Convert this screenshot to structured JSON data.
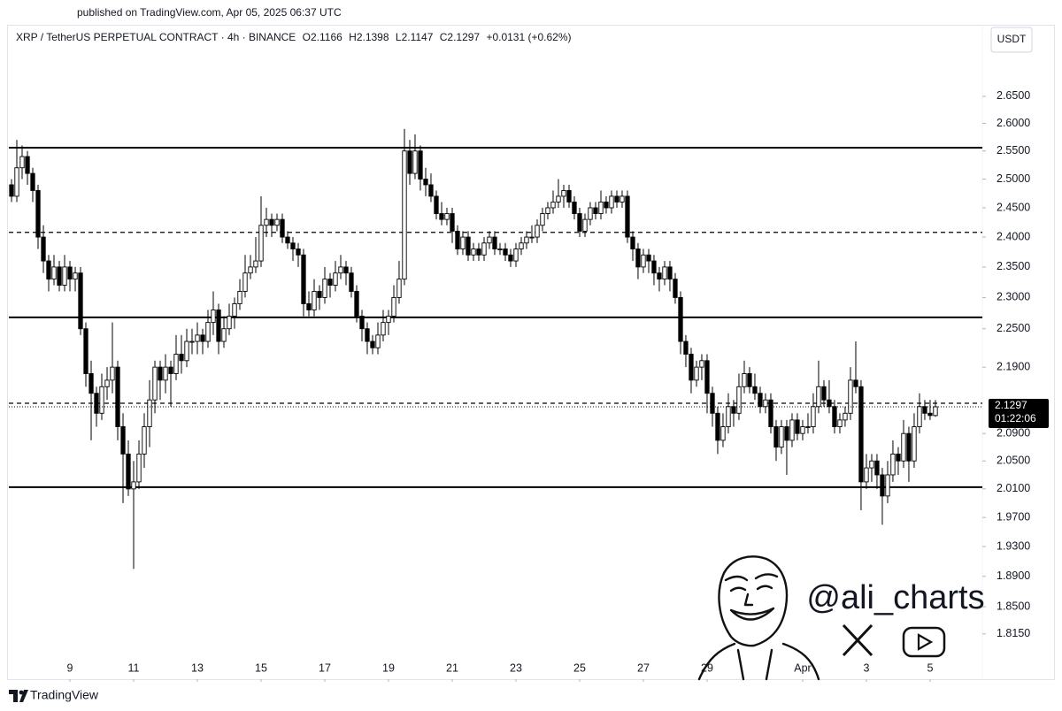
{
  "header": {
    "published": "published on TradingView.com, Apr 05, 2025 06:37 UTC",
    "symbol": "XRP / TetherUS PERPETUAL CONTRACT · 4h · BINANCE",
    "ohlc_labels": [
      "O",
      "H",
      "L",
      "C"
    ],
    "change": "+0.0131 (+0.62%)",
    "currency": "USDT",
    "countdown": "01:22:06"
  },
  "watermark": {
    "handle": "@ali_charts"
  },
  "footer": {
    "brand": "TradingView"
  },
  "chart_data": {
    "type": "candlestick",
    "log_scale": true,
    "up_color": "#ffffff",
    "down_color": "#000000",
    "outline_color": "#000000",
    "xlim": [
      7.083,
      37.64
    ],
    "ylim": [
      1.758,
      2.787
    ],
    "xticks": [
      9,
      11,
      13,
      15,
      17,
      19,
      21,
      23,
      25,
      27,
      29,
      {
        "value": 32,
        "label": "Apr"
      },
      {
        "value": 34,
        "label": "3"
      },
      {
        "value": 36,
        "label": "5"
      }
    ],
    "yticks": [
      {
        "value": 2.65,
        "label": "2.6500"
      },
      {
        "value": 2.6,
        "label": "2.6000"
      },
      {
        "value": 2.55,
        "label": "2.5500"
      },
      {
        "value": 2.5,
        "label": "2.5000"
      },
      {
        "value": 2.45,
        "label": "2.4500"
      },
      {
        "value": 2.4,
        "label": "2.4000"
      },
      {
        "value": 2.35,
        "label": "2.3500"
      },
      {
        "value": 2.3,
        "label": "2.3000"
      },
      {
        "value": 2.25,
        "label": "2.2500"
      },
      {
        "value": 2.19,
        "label": "2.1900"
      },
      {
        "value": 2.09,
        "label": "2.0900"
      },
      {
        "value": 2.05,
        "label": "2.0500"
      },
      {
        "value": 2.01,
        "label": "2.0100"
      },
      {
        "value": 1.97,
        "label": "1.9700"
      },
      {
        "value": 1.93,
        "label": "1.9300"
      },
      {
        "value": 1.89,
        "label": "1.8900"
      },
      {
        "value": 1.85,
        "label": "1.8500"
      },
      {
        "value": 1.815,
        "label": "1.8150"
      }
    ],
    "levels": [
      {
        "value": 2.556,
        "style": "solid"
      },
      {
        "value": 2.408,
        "style": "dashed"
      },
      {
        "value": 2.268,
        "style": "solid"
      },
      {
        "value": 2.135,
        "style": "dashed"
      },
      {
        "value": 2.0125,
        "style": "solid"
      }
    ],
    "x": [
      7.167,
      7.333,
      7.5,
      7.667,
      7.833,
      8,
      8.167,
      8.333,
      8.5,
      8.667,
      8.833,
      9,
      9.167,
      9.333,
      9.5,
      9.667,
      9.833,
      10,
      10.167,
      10.333,
      10.5,
      10.667,
      10.833,
      11,
      11.167,
      11.333,
      11.5,
      11.667,
      11.833,
      12,
      12.167,
      12.333,
      12.5,
      12.667,
      12.833,
      13,
      13.167,
      13.333,
      13.5,
      13.667,
      13.833,
      14,
      14.167,
      14.333,
      14.5,
      14.667,
      14.833,
      15,
      15.167,
      15.333,
      15.5,
      15.667,
      15.833,
      16,
      16.167,
      16.333,
      16.5,
      16.667,
      16.833,
      17,
      17.167,
      17.333,
      17.5,
      17.667,
      17.833,
      18,
      18.167,
      18.333,
      18.5,
      18.667,
      18.833,
      19,
      19.167,
      19.333,
      19.5,
      19.667,
      19.833,
      20,
      20.167,
      20.333,
      20.5,
      20.667,
      20.833,
      21,
      21.167,
      21.333,
      21.5,
      21.667,
      21.833,
      22,
      22.167,
      22.333,
      22.5,
      22.667,
      22.833,
      23,
      23.167,
      23.333,
      23.5,
      23.667,
      23.833,
      24,
      24.167,
      24.333,
      24.5,
      24.667,
      24.833,
      25,
      25.167,
      25.333,
      25.5,
      25.667,
      25.833,
      26,
      26.167,
      26.333,
      26.5,
      26.667,
      26.833,
      27,
      27.167,
      27.333,
      27.5,
      27.667,
      27.833,
      28,
      28.167,
      28.333,
      28.5,
      28.667,
      28.833,
      29,
      29.167,
      29.333,
      29.5,
      29.667,
      29.833,
      30,
      30.167,
      30.333,
      30.5,
      30.667,
      30.833,
      31,
      31.167,
      31.333,
      31.5,
      31.667,
      31.833,
      32,
      32.167,
      32.333,
      32.5,
      32.667,
      32.833,
      33,
      33.167,
      33.333,
      33.5,
      33.667,
      33.833,
      34,
      34.167,
      34.333,
      34.5,
      34.667,
      34.833,
      35,
      35.167,
      35.333,
      35.5,
      35.667,
      35.833,
      36,
      36.167
    ],
    "ohlc": [
      [
        2.49,
        2.5,
        2.46,
        2.47
      ],
      [
        2.47,
        2.57,
        2.46,
        2.52
      ],
      [
        2.52,
        2.56,
        2.5,
        2.54
      ],
      [
        2.54,
        2.55,
        2.49,
        2.51
      ],
      [
        2.51,
        2.52,
        2.46,
        2.48
      ],
      [
        2.48,
        2.49,
        2.38,
        2.4
      ],
      [
        2.4,
        2.42,
        2.34,
        2.36
      ],
      [
        2.36,
        2.37,
        2.31,
        2.33
      ],
      [
        2.33,
        2.37,
        2.32,
        2.35
      ],
      [
        2.35,
        2.36,
        2.31,
        2.32
      ],
      [
        2.32,
        2.37,
        2.31,
        2.35
      ],
      [
        2.35,
        2.36,
        2.31,
        2.33
      ],
      [
        2.33,
        2.35,
        2.31,
        2.34
      ],
      [
        2.34,
        2.35,
        2.24,
        2.25
      ],
      [
        2.25,
        2.26,
        2.16,
        2.18
      ],
      [
        2.18,
        2.2,
        2.08,
        2.15
      ],
      [
        2.15,
        2.16,
        2.1,
        2.12
      ],
      [
        2.12,
        2.18,
        2.11,
        2.16
      ],
      [
        2.16,
        2.19,
        2.14,
        2.17
      ],
      [
        2.17,
        2.26,
        2.15,
        2.19
      ],
      [
        2.19,
        2.2,
        2.08,
        2.1
      ],
      [
        2.1,
        2.12,
        1.99,
        2.06
      ],
      [
        2.06,
        2.08,
        2,
        2.01
      ],
      [
        2.01,
        2.05,
        1.9,
        2.02
      ],
      [
        2.02,
        2.08,
        2.01,
        2.06
      ],
      [
        2.06,
        2.12,
        2.04,
        2.1
      ],
      [
        2.1,
        2.17,
        2.07,
        2.14
      ],
      [
        2.14,
        2.2,
        2.12,
        2.19
      ],
      [
        2.19,
        2.2,
        2.14,
        2.17
      ],
      [
        2.17,
        2.21,
        2.15,
        2.19
      ],
      [
        2.19,
        2.2,
        2.13,
        2.18
      ],
      [
        2.18,
        2.24,
        2.17,
        2.21
      ],
      [
        2.21,
        2.24,
        2.18,
        2.2
      ],
      [
        2.2,
        2.25,
        2.19,
        2.23
      ],
      [
        2.23,
        2.25,
        2.21,
        2.23
      ],
      [
        2.23,
        2.26,
        2.21,
        2.24
      ],
      [
        2.24,
        2.25,
        2.21,
        2.23
      ],
      [
        2.23,
        2.28,
        2.22,
        2.26
      ],
      [
        2.26,
        2.31,
        2.24,
        2.28
      ],
      [
        2.28,
        2.29,
        2.21,
        2.23
      ],
      [
        2.23,
        2.27,
        2.22,
        2.25
      ],
      [
        2.25,
        2.29,
        2.24,
        2.27
      ],
      [
        2.27,
        2.3,
        2.25,
        2.29
      ],
      [
        2.29,
        2.33,
        2.28,
        2.31
      ],
      [
        2.31,
        2.37,
        2.3,
        2.34
      ],
      [
        2.34,
        2.37,
        2.33,
        2.35
      ],
      [
        2.35,
        2.4,
        2.34,
        2.36
      ],
      [
        2.36,
        2.47,
        2.35,
        2.42
      ],
      [
        2.42,
        2.45,
        2.4,
        2.43
      ],
      [
        2.43,
        2.44,
        2.4,
        2.42
      ],
      [
        2.42,
        2.44,
        2.41,
        2.43
      ],
      [
        2.43,
        2.44,
        2.39,
        2.4
      ],
      [
        2.4,
        2.41,
        2.38,
        2.39
      ],
      [
        2.39,
        2.4,
        2.36,
        2.38
      ],
      [
        2.38,
        2.39,
        2.35,
        2.37
      ],
      [
        2.37,
        2.38,
        2.27,
        2.29
      ],
      [
        2.29,
        2.31,
        2.27,
        2.28
      ],
      [
        2.28,
        2.33,
        2.27,
        2.31
      ],
      [
        2.31,
        2.32,
        2.28,
        2.3
      ],
      [
        2.3,
        2.35,
        2.29,
        2.33
      ],
      [
        2.33,
        2.34,
        2.3,
        2.32
      ],
      [
        2.32,
        2.36,
        2.31,
        2.34
      ],
      [
        2.34,
        2.37,
        2.33,
        2.35
      ],
      [
        2.35,
        2.36,
        2.32,
        2.34
      ],
      [
        2.34,
        2.35,
        2.3,
        2.31
      ],
      [
        2.31,
        2.32,
        2.26,
        2.27
      ],
      [
        2.27,
        2.28,
        2.23,
        2.25
      ],
      [
        2.25,
        2.26,
        2.21,
        2.23
      ],
      [
        2.23,
        2.24,
        2.21,
        2.22
      ],
      [
        2.22,
        2.26,
        2.21,
        2.24
      ],
      [
        2.24,
        2.28,
        2.23,
        2.26
      ],
      [
        2.26,
        2.28,
        2.24,
        2.27
      ],
      [
        2.27,
        2.32,
        2.26,
        2.3
      ],
      [
        2.3,
        2.36,
        2.29,
        2.33
      ],
      [
        2.33,
        2.59,
        2.32,
        2.55
      ],
      [
        2.55,
        2.57,
        2.49,
        2.51
      ],
      [
        2.51,
        2.58,
        2.5,
        2.55
      ],
      [
        2.55,
        2.56,
        2.48,
        2.5
      ],
      [
        2.5,
        2.52,
        2.47,
        2.49
      ],
      [
        2.49,
        2.51,
        2.46,
        2.47
      ],
      [
        2.47,
        2.48,
        2.43,
        2.44
      ],
      [
        2.44,
        2.46,
        2.42,
        2.43
      ],
      [
        2.43,
        2.45,
        2.42,
        2.44
      ],
      [
        2.44,
        2.45,
        2.39,
        2.41
      ],
      [
        2.41,
        2.42,
        2.37,
        2.38
      ],
      [
        2.38,
        2.41,
        2.37,
        2.4
      ],
      [
        2.4,
        2.41,
        2.36,
        2.37
      ],
      [
        2.37,
        2.39,
        2.36,
        2.38
      ],
      [
        2.38,
        2.39,
        2.36,
        2.37
      ],
      [
        2.37,
        2.4,
        2.36,
        2.39
      ],
      [
        2.39,
        2.41,
        2.38,
        2.4
      ],
      [
        2.4,
        2.41,
        2.37,
        2.38
      ],
      [
        2.38,
        2.39,
        2.37,
        2.38
      ],
      [
        2.38,
        2.39,
        2.36,
        2.37
      ],
      [
        2.37,
        2.38,
        2.35,
        2.36
      ],
      [
        2.36,
        2.39,
        2.35,
        2.38
      ],
      [
        2.38,
        2.4,
        2.37,
        2.39
      ],
      [
        2.39,
        2.41,
        2.38,
        2.4
      ],
      [
        2.4,
        2.42,
        2.39,
        2.4
      ],
      [
        2.4,
        2.43,
        2.39,
        2.42
      ],
      [
        2.42,
        2.45,
        2.41,
        2.44
      ],
      [
        2.44,
        2.46,
        2.43,
        2.45
      ],
      [
        2.45,
        2.48,
        2.44,
        2.46
      ],
      [
        2.46,
        2.5,
        2.45,
        2.47
      ],
      [
        2.47,
        2.49,
        2.45,
        2.48
      ],
      [
        2.48,
        2.49,
        2.45,
        2.46
      ],
      [
        2.46,
        2.47,
        2.43,
        2.44
      ],
      [
        2.44,
        2.45,
        2.4,
        2.41
      ],
      [
        2.41,
        2.44,
        2.4,
        2.43
      ],
      [
        2.43,
        2.46,
        2.42,
        2.45
      ],
      [
        2.45,
        2.46,
        2.43,
        2.44
      ],
      [
        2.44,
        2.48,
        2.43,
        2.46
      ],
      [
        2.46,
        2.47,
        2.44,
        2.45
      ],
      [
        2.45,
        2.48,
        2.44,
        2.47
      ],
      [
        2.47,
        2.48,
        2.45,
        2.46
      ],
      [
        2.46,
        2.48,
        2.45,
        2.47
      ],
      [
        2.47,
        2.48,
        2.39,
        2.4
      ],
      [
        2.4,
        2.41,
        2.36,
        2.38
      ],
      [
        2.38,
        2.39,
        2.33,
        2.35
      ],
      [
        2.35,
        2.38,
        2.34,
        2.37
      ],
      [
        2.37,
        2.38,
        2.34,
        2.36
      ],
      [
        2.36,
        2.37,
        2.32,
        2.34
      ],
      [
        2.34,
        2.35,
        2.31,
        2.33
      ],
      [
        2.33,
        2.36,
        2.32,
        2.35
      ],
      [
        2.35,
        2.36,
        2.31,
        2.33
      ],
      [
        2.33,
        2.34,
        2.29,
        2.3
      ],
      [
        2.3,
        2.31,
        2.21,
        2.23
      ],
      [
        2.23,
        2.24,
        2.19,
        2.21
      ],
      [
        2.21,
        2.22,
        2.15,
        2.17
      ],
      [
        2.17,
        2.2,
        2.16,
        2.19
      ],
      [
        2.19,
        2.21,
        2.17,
        2.2
      ],
      [
        2.2,
        2.21,
        2.12,
        2.15
      ],
      [
        2.15,
        2.16,
        2.1,
        2.12
      ],
      [
        2.12,
        2.13,
        2.06,
        2.08
      ],
      [
        2.08,
        2.12,
        2.07,
        2.1
      ],
      [
        2.1,
        2.15,
        2.09,
        2.13
      ],
      [
        2.13,
        2.14,
        2.1,
        2.12
      ],
      [
        2.12,
        2.18,
        2.11,
        2.16
      ],
      [
        2.16,
        2.2,
        2.15,
        2.18
      ],
      [
        2.18,
        2.19,
        2.15,
        2.16
      ],
      [
        2.16,
        2.18,
        2.14,
        2.15
      ],
      [
        2.15,
        2.16,
        2.12,
        2.13
      ],
      [
        2.13,
        2.15,
        2.12,
        2.14
      ],
      [
        2.14,
        2.15,
        2.09,
        2.1
      ],
      [
        2.1,
        2.11,
        2.05,
        2.07
      ],
      [
        2.07,
        2.11,
        2.06,
        2.1
      ],
      [
        2.1,
        2.11,
        2.03,
        2.08
      ],
      [
        2.08,
        2.12,
        2.07,
        2.11
      ],
      [
        2.11,
        2.12,
        2.08,
        2.09
      ],
      [
        2.09,
        2.11,
        2.08,
        2.1
      ],
      [
        2.1,
        2.12,
        2.09,
        2.1
      ],
      [
        2.1,
        2.15,
        2.09,
        2.13
      ],
      [
        2.13,
        2.2,
        2.12,
        2.16
      ],
      [
        2.16,
        2.17,
        2.13,
        2.14
      ],
      [
        2.14,
        2.17,
        2.12,
        2.13
      ],
      [
        2.13,
        2.14,
        2.09,
        2.1
      ],
      [
        2.1,
        2.12,
        2.09,
        2.11
      ],
      [
        2.11,
        2.13,
        2.1,
        2.12
      ],
      [
        2.12,
        2.19,
        2.11,
        2.17
      ],
      [
        2.17,
        2.23,
        2.15,
        2.16
      ],
      [
        2.16,
        2.17,
        1.98,
        2.02
      ],
      [
        2.02,
        2.06,
        2.01,
        2.04
      ],
      [
        2.04,
        2.06,
        2.02,
        2.05
      ],
      [
        2.05,
        2.06,
        2.01,
        2.03
      ],
      [
        2.03,
        2.04,
        1.96,
        2
      ],
      [
        2,
        2.05,
        1.99,
        2.03
      ],
      [
        2.03,
        2.08,
        2.02,
        2.06
      ],
      [
        2.06,
        2.07,
        2.03,
        2.05
      ],
      [
        2.05,
        2.11,
        2.04,
        2.09
      ],
      [
        2.09,
        2.1,
        2.02,
        2.05
      ],
      [
        2.05,
        2.12,
        2.04,
        2.1
      ],
      [
        2.1,
        2.15,
        2.09,
        2.13
      ],
      [
        2.13,
        2.14,
        2.11,
        2.12
      ],
      [
        2.12,
        2.14,
        2.11,
        2.1166
      ],
      [
        2.1166,
        2.1398,
        2.1147,
        2.1297
      ]
    ]
  }
}
